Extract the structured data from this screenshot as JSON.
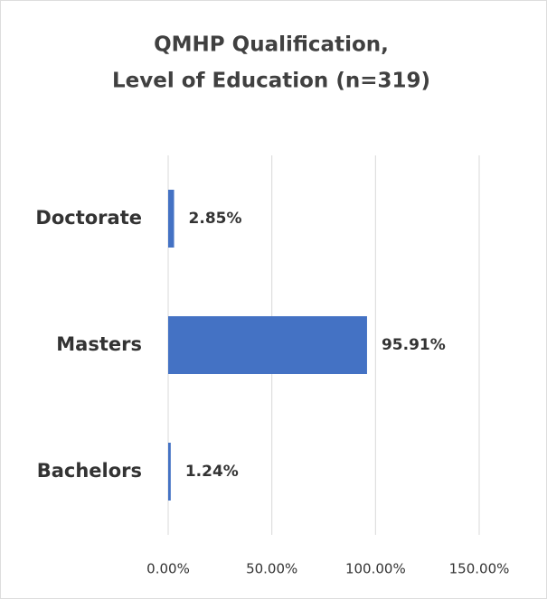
{
  "chart_data": {
    "type": "bar",
    "orientation": "horizontal",
    "title": [
      "QMHP Qualification,",
      "Level of Education (n=319)"
    ],
    "categories": [
      "Doctorate",
      "Masters",
      "Bachelors"
    ],
    "values": [
      2.85,
      95.91,
      1.24
    ],
    "value_labels": [
      "2.85%",
      "95.91%",
      "1.24%"
    ],
    "color": "#4472c4",
    "xlim": [
      0,
      150
    ],
    "xticks": [
      {
        "value": 0,
        "label": "0.00%"
      },
      {
        "value": 50,
        "label": "50.00%"
      },
      {
        "value": 100,
        "label": "100.00%"
      },
      {
        "value": 150,
        "label": "150.00%"
      }
    ],
    "grid": true
  }
}
